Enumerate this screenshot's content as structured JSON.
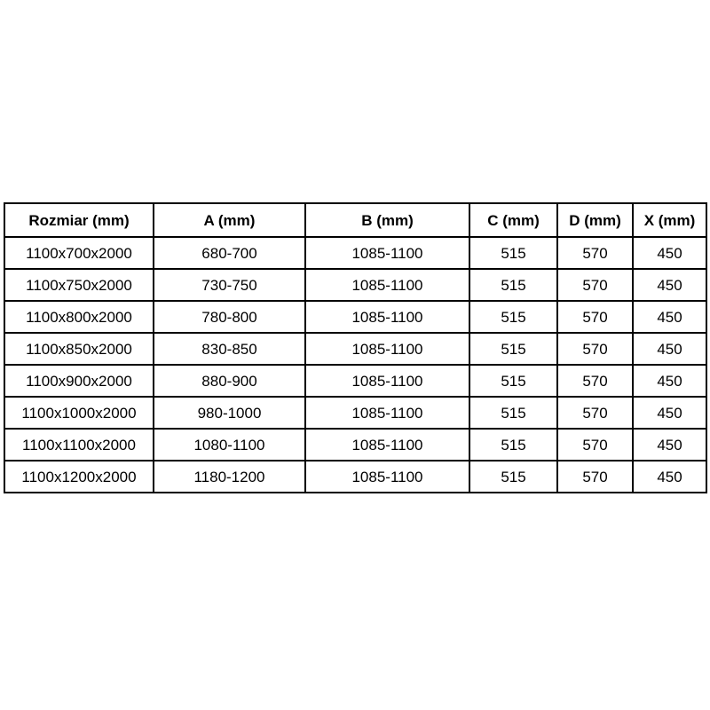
{
  "colors": {
    "background": "#ffffff",
    "border": "#000000",
    "text": "#000000"
  },
  "chart_data": {
    "type": "table",
    "columns": [
      "Rozmiar (mm)",
      "A (mm)",
      "B (mm)",
      "C (mm)",
      "D (mm)",
      "X (mm)"
    ],
    "rows": [
      [
        "1100x700x2000",
        "680-700",
        "1085-1100",
        "515",
        "570",
        "450"
      ],
      [
        "1100x750x2000",
        "730-750",
        "1085-1100",
        "515",
        "570",
        "450"
      ],
      [
        "1100x800x2000",
        "780-800",
        "1085-1100",
        "515",
        "570",
        "450"
      ],
      [
        "1100x850x2000",
        "830-850",
        "1085-1100",
        "515",
        "570",
        "450"
      ],
      [
        "1100x900x2000",
        "880-900",
        "1085-1100",
        "515",
        "570",
        "450"
      ],
      [
        "1100x1000x2000",
        "980-1000",
        "1085-1100",
        "515",
        "570",
        "450"
      ],
      [
        "1100x1100x2000",
        "1080-1100",
        "1085-1100",
        "515",
        "570",
        "450"
      ],
      [
        "1100x1200x2000",
        "1180-1200",
        "1085-1100",
        "515",
        "570",
        "450"
      ]
    ],
    "layout": {
      "grid": true,
      "header_bold": true,
      "cell_alignment": "center"
    }
  }
}
